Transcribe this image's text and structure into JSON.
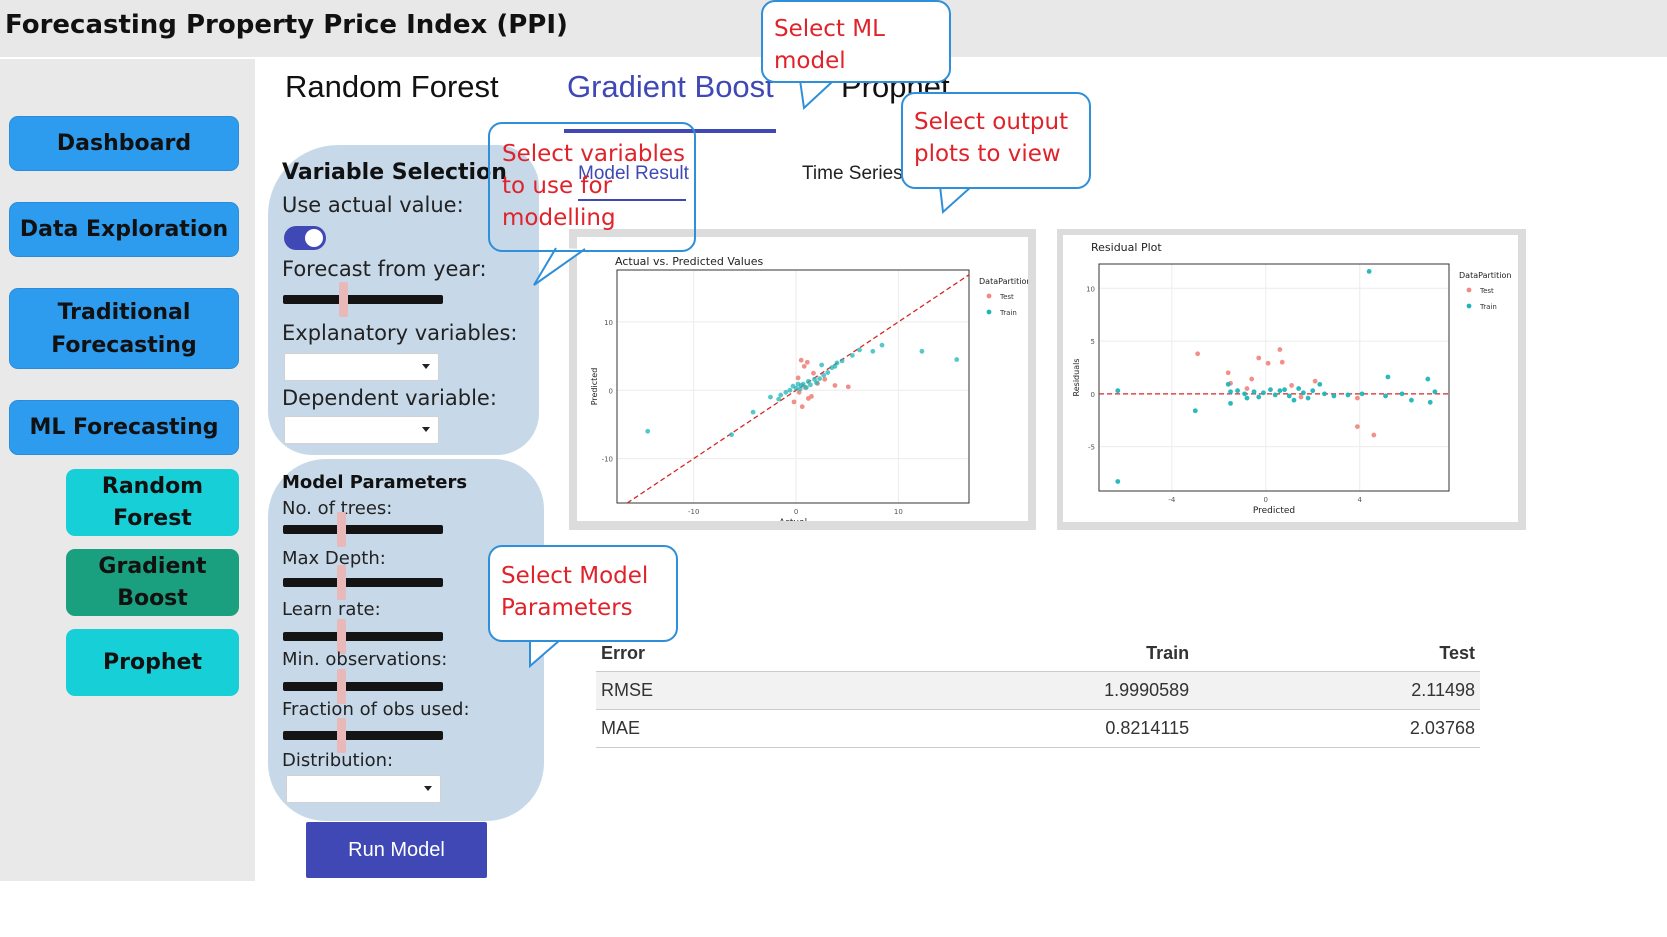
{
  "app": {
    "title": "Forecasting Property Price Index (PPI)"
  },
  "sidebar": {
    "items": [
      {
        "label": "Dashboard"
      },
      {
        "label": "Data Exploration"
      },
      {
        "label": "Traditional Forecasting"
      },
      {
        "label": "ML Forecasting"
      }
    ],
    "subitems": [
      {
        "label": "Random Forest"
      },
      {
        "label": "Gradient Boost",
        "active": true
      },
      {
        "label": "Prophet"
      }
    ]
  },
  "model_tabs": {
    "items": [
      "Random Forest",
      "Gradient Boost",
      "Prophet"
    ],
    "active": "Gradient Boost"
  },
  "output_tabs": {
    "items": [
      "Model Result",
      "Time Series"
    ],
    "active": "Model Result"
  },
  "variable_selection": {
    "heading": "Variable Selection",
    "use_actual_label": "Use actual value:",
    "use_actual_on": true,
    "forecast_from_label": "Forecast from year:",
    "forecast_from_position": 0.37,
    "explanatory_label": "Explanatory variables:",
    "explanatory_value": "",
    "dependent_label": "Dependent variable:",
    "dependent_value": ""
  },
  "model_parameters": {
    "heading": "Model Parameters",
    "trees_label": "No. of trees:",
    "trees_position": 0.36,
    "depth_label": "Max Depth:",
    "depth_position": 0.36,
    "learn_label": "Learn rate:",
    "learn_position": 0.36,
    "minobs_label": "Min. observations:",
    "minobs_position": 0.36,
    "fraction_label": "Fraction of obs used:",
    "fraction_position": 0.36,
    "distribution_label": "Distribution:",
    "distribution_value": ""
  },
  "run_button": "Run Model",
  "callouts": {
    "model": "Select ML\nmodel",
    "output": "Select output\nplots to view",
    "variables": "Select variables\nto use for\nmodelling",
    "params": "Select Model\nParameters"
  },
  "error_table": {
    "headers": [
      "Error",
      "Train",
      "Test"
    ],
    "rows": [
      [
        "RMSE",
        "1.9990589",
        "2.11498"
      ],
      [
        "MAE",
        "0.8214115",
        "2.03768"
      ]
    ]
  },
  "colors": {
    "test": "#f08a82",
    "train": "#1fb5b8",
    "reference_line": "#d62728",
    "accent_tab": "#3f48b5"
  },
  "chart_data": [
    {
      "type": "scatter",
      "title": "Actual vs. Predicted Values",
      "xlabel": "Actual",
      "ylabel": "Predicted",
      "x_ticks": [
        -10,
        0,
        10
      ],
      "y_ticks": [
        -10,
        0,
        10
      ],
      "xlim": [
        -17.5,
        16.9
      ],
      "ylim": [
        -16.5,
        17.6
      ],
      "legend": {
        "title": "DataPartition",
        "entries": [
          "Test",
          "Train"
        ],
        "position": "right"
      },
      "reference_line": "y = x",
      "series": [
        {
          "name": "Test",
          "points": [
            [
              0.5,
              4.4
            ],
            [
              1.1,
              4.1
            ],
            [
              0.8,
              3.5
            ],
            [
              0.6,
              -2.4
            ],
            [
              1.2,
              -1.2
            ],
            [
              2.1,
              1.0
            ],
            [
              3.8,
              0.7
            ],
            [
              5.1,
              0.5
            ],
            [
              0.2,
              1.8
            ],
            [
              1.7,
              2.5
            ],
            [
              0.9,
              0.4
            ],
            [
              -0.2,
              -1.7
            ],
            [
              2.8,
              1.6
            ],
            [
              1.5,
              -0.9
            ],
            [
              0.3,
              -0.3
            ]
          ]
        },
        {
          "name": "Train",
          "points": [
            [
              -14.5,
              -6.0
            ],
            [
              -6.3,
              -6.5
            ],
            [
              -4.2,
              -3.2
            ],
            [
              -2.5,
              -1.0
            ],
            [
              -1.7,
              -1.3
            ],
            [
              -1.5,
              -0.7
            ],
            [
              -1.0,
              -0.3
            ],
            [
              -0.6,
              0.0
            ],
            [
              -0.3,
              0.6
            ],
            [
              0.0,
              0.3
            ],
            [
              0.2,
              0.9
            ],
            [
              0.4,
              0.2
            ],
            [
              0.5,
              0.7
            ],
            [
              0.7,
              0.9
            ],
            [
              1.0,
              0.4
            ],
            [
              1.2,
              1.3
            ],
            [
              1.4,
              0.8
            ],
            [
              1.8,
              1.6
            ],
            [
              2.0,
              1.1
            ],
            [
              2.3,
              1.7
            ],
            [
              2.7,
              2.2
            ],
            [
              3.1,
              2.6
            ],
            [
              3.5,
              3.3
            ],
            [
              4.0,
              4.0
            ],
            [
              4.5,
              4.3
            ],
            [
              5.5,
              5.1
            ],
            [
              6.2,
              5.9
            ],
            [
              7.5,
              5.7
            ],
            [
              8.4,
              6.6
            ],
            [
              12.3,
              5.7
            ],
            [
              15.7,
              4.5
            ],
            [
              2.5,
              3.7
            ],
            [
              3.8,
              3.5
            ]
          ]
        }
      ]
    },
    {
      "type": "scatter",
      "title": "Residual Plot",
      "xlabel": "Predicted",
      "ylabel": "Residuals",
      "x_ticks": [
        -4,
        0,
        4
      ],
      "y_ticks": [
        -5,
        0,
        5,
        10
      ],
      "xlim": [
        -7.1,
        7.8
      ],
      "ylim": [
        -9.2,
        12.3
      ],
      "legend": {
        "title": "DataPartition",
        "entries": [
          "Test",
          "Train"
        ],
        "position": "right"
      },
      "reference_line": "y = 0",
      "series": [
        {
          "name": "Test",
          "points": [
            [
              -2.9,
              3.8
            ],
            [
              -1.6,
              2.0
            ],
            [
              -1.5,
              1.0
            ],
            [
              -0.6,
              1.4
            ],
            [
              -0.3,
              3.4
            ],
            [
              0.1,
              2.9
            ],
            [
              0.6,
              4.2
            ],
            [
              0.7,
              3.0
            ],
            [
              2.1,
              1.2
            ],
            [
              1.1,
              0.8
            ],
            [
              3.9,
              -0.4
            ],
            [
              3.9,
              -3.1
            ],
            [
              4.6,
              -3.9
            ],
            [
              -0.8,
              0.5
            ],
            [
              1.5,
              -0.3
            ]
          ]
        },
        {
          "name": "Train",
          "points": [
            [
              -6.3,
              -8.3
            ],
            [
              -6.3,
              0.3
            ],
            [
              -3.0,
              -1.6
            ],
            [
              -1.6,
              0.9
            ],
            [
              -1.5,
              0.2
            ],
            [
              -1.2,
              0.3
            ],
            [
              -0.9,
              0.0
            ],
            [
              -0.8,
              -0.4
            ],
            [
              -0.5,
              0.2
            ],
            [
              -0.3,
              -0.3
            ],
            [
              -0.1,
              0.1
            ],
            [
              0.2,
              0.4
            ],
            [
              0.4,
              -0.1
            ],
            [
              0.6,
              0.3
            ],
            [
              0.8,
              0.4
            ],
            [
              1.0,
              -0.2
            ],
            [
              1.2,
              -0.6
            ],
            [
              1.4,
              0.5
            ],
            [
              1.6,
              0.1
            ],
            [
              1.8,
              -0.4
            ],
            [
              2.0,
              0.3
            ],
            [
              2.3,
              0.9
            ],
            [
              2.5,
              0.0
            ],
            [
              2.9,
              -0.2
            ],
            [
              3.5,
              -0.1
            ],
            [
              4.1,
              0.0
            ],
            [
              5.2,
              1.6
            ],
            [
              5.8,
              0.0
            ],
            [
              6.2,
              -0.6
            ],
            [
              6.9,
              1.4
            ],
            [
              7.0,
              -0.8
            ],
            [
              7.2,
              0.2
            ],
            [
              4.4,
              11.6
            ],
            [
              5.1,
              -0.2
            ],
            [
              -1.5,
              -0.9
            ]
          ]
        }
      ]
    }
  ]
}
